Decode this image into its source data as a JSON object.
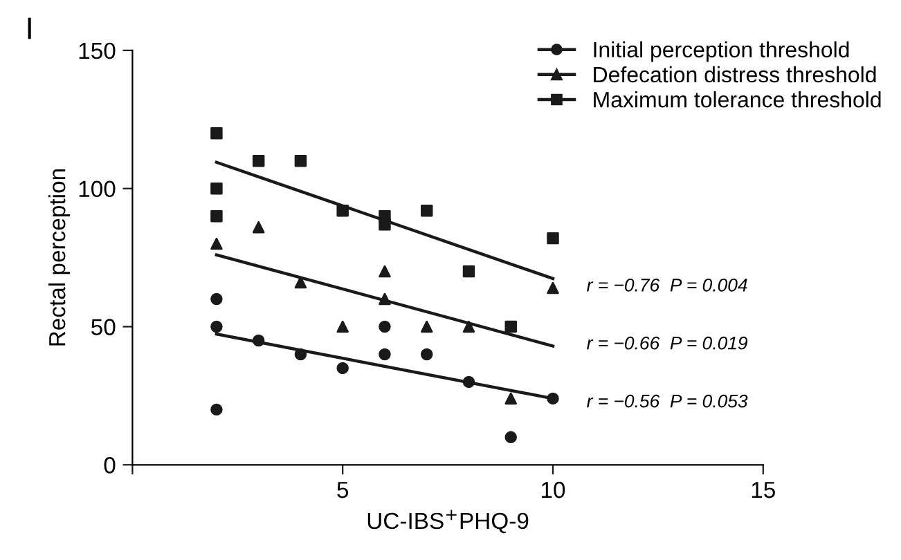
{
  "chart_data": {
    "type": "scatter",
    "title": "I",
    "xlabel": "UC-IBS$^{+}$PHQ-9",
    "ylabel": "Rectal perception",
    "xlim": [
      0,
      15
    ],
    "xticks": [
      {
        "value": 0,
        "label": null
      },
      5,
      10,
      15
    ],
    "ylim": [
      0,
      150
    ],
    "yticks": [
      0,
      50,
      100,
      150
    ],
    "grid": false,
    "legend": "top right",
    "series": [
      {
        "name": "Initial perception threshold",
        "color": "#1a1a1a",
        "marker": "circle",
        "x": [
          2,
          2,
          2,
          3,
          4,
          5,
          6,
          6,
          7,
          8,
          9,
          10
        ],
        "values": [
          60,
          50,
          20,
          45,
          40,
          35,
          50,
          40,
          40,
          30,
          10,
          24
        ]
      },
      {
        "name": "Defecation distress threshold",
        "color": "#1a1a1a",
        "marker": "triangle",
        "x": [
          2,
          3,
          4,
          5,
          6,
          6,
          7,
          8,
          9,
          10
        ],
        "values": [
          80,
          86,
          66,
          50,
          70,
          60,
          50,
          50,
          24,
          64
        ]
      },
      {
        "name": "Maximum tolerance threshold",
        "color": "#1a1a1a",
        "marker": "square",
        "x": [
          2,
          2,
          2,
          3,
          4,
          5,
          6,
          6,
          7,
          8,
          9,
          10
        ],
        "values": [
          120,
          100,
          90,
          110,
          110,
          92,
          90,
          87,
          92,
          70,
          50,
          82
        ]
      },
      {
        "type": "line",
        "color": "#1a1a1a",
        "marker": "none",
        "x": [
          2,
          10
        ],
        "values": [
          47.3,
          24
        ]
      },
      {
        "type": "line",
        "color": "#1a1a1a",
        "marker": "none",
        "x": [
          2,
          10
        ],
        "values": [
          76,
          43
        ]
      },
      {
        "type": "line",
        "color": "#1a1a1a",
        "marker": "none",
        "x": [
          2,
          10
        ],
        "values": [
          109.5,
          67.4
        ]
      }
    ],
    "annotations": [
      "r = −0.76  P = 0.004",
      "r = −0.66  P = 0.019",
      "r = −0.56  P = 0.053"
    ]
  }
}
